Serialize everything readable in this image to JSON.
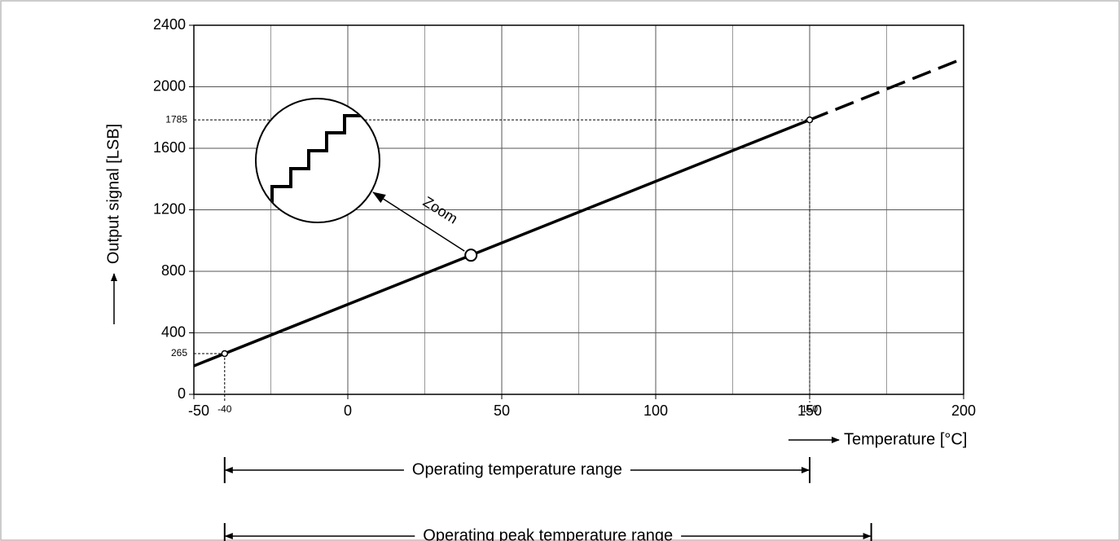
{
  "chart_data": {
    "type": "line",
    "x_label": "Temperature [°C]",
    "y_label": "Output signal [LSB]",
    "xlim": [
      -50,
      200
    ],
    "xticks": [
      -50,
      0,
      50,
      100,
      150,
      200
    ],
    "xminorticks": [
      -25,
      25,
      75,
      125,
      175
    ],
    "ylim": [
      0,
      2400
    ],
    "yticks": [
      0,
      400,
      800,
      1200,
      1600,
      2000,
      2400
    ],
    "grid": true,
    "series": [
      {
        "color": "#000000",
        "style": "solid",
        "x": [
          -50,
          150
        ],
        "values": [
          185,
          1785
        ]
      },
      {
        "color": "#000000",
        "style": "dashed",
        "x": [
          150,
          200
        ],
        "values": [
          1785,
          2185
        ]
      }
    ],
    "marked_points": [
      {
        "x": -40,
        "y": 265
      },
      {
        "x": 150,
        "y": 1785
      }
    ],
    "zoom": {
      "label": "Zoom",
      "x": 40,
      "y": 905
    },
    "ranges": [
      {
        "label": "Operating temperature range",
        "from": -40,
        "to": 150
      },
      {
        "label": "Operating peak temperature range",
        "from": -40,
        "to": 170
      }
    ]
  }
}
